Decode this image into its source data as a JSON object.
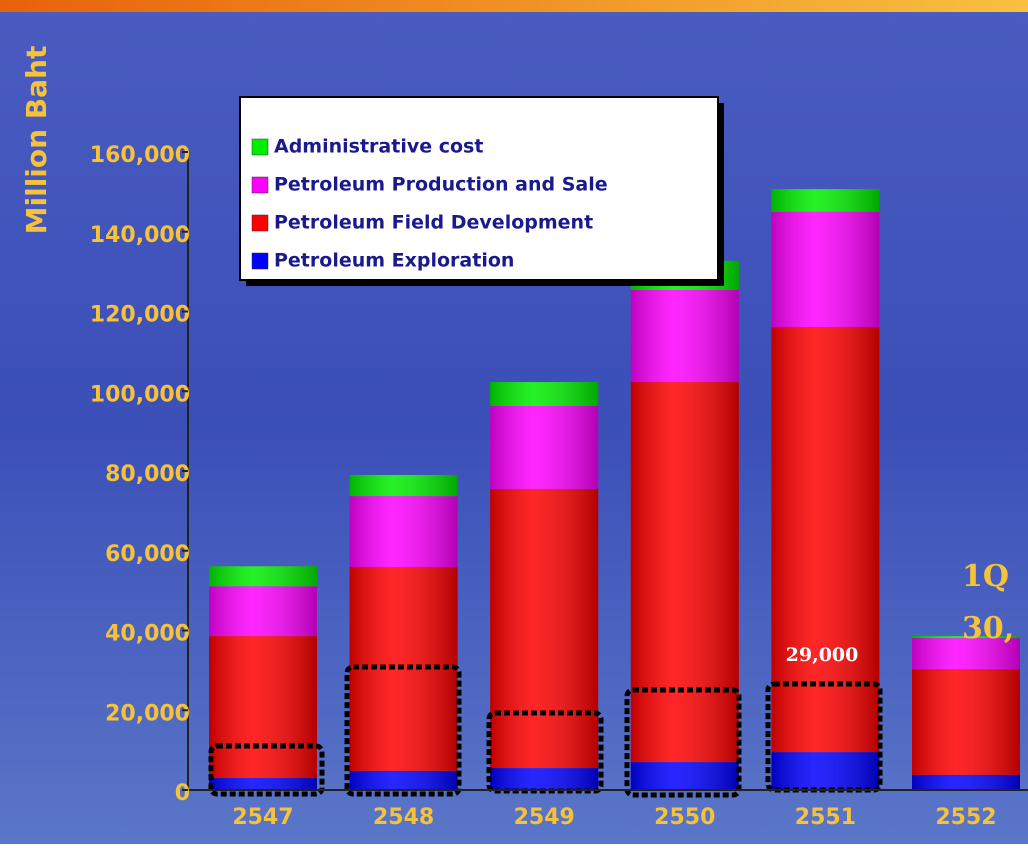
{
  "chart_data": {
    "type": "bar",
    "stacked": true,
    "ylabel": "Million Baht",
    "categories": [
      "2547",
      "2548",
      "2549",
      "2550",
      "2551",
      "2552"
    ],
    "series": [
      {
        "name": "Petroleum Exploration",
        "color": "#0000ff",
        "values": [
          3000,
          4800,
          5500,
          7000,
          9500,
          3800
        ]
      },
      {
        "name": "Petroleum Field Development",
        "color": "#ff0000",
        "values": [
          35600,
          51100,
          70000,
          95300,
          106600,
          26500
        ]
      },
      {
        "name": "Petroleum Production and Sale",
        "color": "#ff00ff",
        "values": [
          12500,
          17800,
          20800,
          23100,
          28900,
          7800
        ]
      },
      {
        "name": "Administrative cost",
        "color": "#00ee00",
        "values": [
          5000,
          5300,
          6000,
          7300,
          5700,
          500
        ]
      }
    ],
    "ylim": [
      0,
      160000
    ],
    "yticks": [
      0,
      {
        "value": 20000,
        "label": "20,000"
      },
      {
        "value": 40000,
        "label": "40,000"
      },
      {
        "value": 60000,
        "label": "60,000"
      },
      {
        "value": 80000,
        "label": "80,000"
      },
      {
        "value": 100000,
        "label": "100,000"
      },
      {
        "value": 120000,
        "label": "120,000"
      },
      {
        "value": 140000,
        "label": "140,000"
      },
      {
        "value": 160000,
        "label": "160,000"
      }
    ],
    "annotations": [
      "29,000",
      "1Q",
      "30,"
    ]
  }
}
